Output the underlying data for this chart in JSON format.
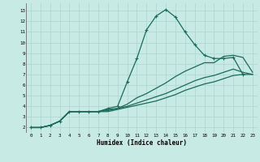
{
  "xlabel": "Humidex (Indice chaleur)",
  "bg_color": "#c8eae4",
  "grid_color": "#b0d8d0",
  "line_color": "#1a6b5a",
  "xlim": [
    -0.5,
    23.5
  ],
  "ylim": [
    1.5,
    13.7
  ],
  "xticks": [
    0,
    1,
    2,
    3,
    4,
    5,
    6,
    7,
    8,
    9,
    10,
    11,
    12,
    13,
    14,
    15,
    16,
    17,
    18,
    19,
    20,
    21,
    22,
    23
  ],
  "yticks": [
    2,
    3,
    4,
    5,
    6,
    7,
    8,
    9,
    10,
    11,
    12,
    13
  ],
  "line1_x": [
    0,
    1,
    2,
    3,
    4,
    5,
    6,
    7,
    8,
    9,
    10,
    11,
    12,
    13,
    14,
    15,
    16,
    17,
    18,
    19,
    20,
    21,
    22
  ],
  "line1_y": [
    2.0,
    2.0,
    2.2,
    2.6,
    3.5,
    3.5,
    3.5,
    3.5,
    3.8,
    4.0,
    6.3,
    8.5,
    11.2,
    12.5,
    13.1,
    12.4,
    11.0,
    9.8,
    8.8,
    8.5,
    8.5,
    8.6,
    7.0
  ],
  "line2_x": [
    0,
    1,
    2,
    3,
    4,
    5,
    6,
    7,
    8,
    9,
    10,
    11,
    12,
    13,
    14,
    15,
    16,
    17,
    18,
    19,
    20,
    21,
    22,
    23
  ],
  "line2_y": [
    2.0,
    2.0,
    2.2,
    2.6,
    3.5,
    3.5,
    3.5,
    3.5,
    3.7,
    3.8,
    4.2,
    4.8,
    5.2,
    5.7,
    6.2,
    6.8,
    7.3,
    7.7,
    8.1,
    8.1,
    8.7,
    8.8,
    8.6,
    7.2
  ],
  "line3_x": [
    0,
    1,
    2,
    3,
    4,
    5,
    6,
    7,
    8,
    9,
    10,
    11,
    12,
    13,
    14,
    15,
    16,
    17,
    18,
    19,
    20,
    21,
    22,
    23
  ],
  "line3_y": [
    2.0,
    2.0,
    2.2,
    2.6,
    3.5,
    3.5,
    3.5,
    3.5,
    3.6,
    3.8,
    4.0,
    4.3,
    4.6,
    4.9,
    5.2,
    5.6,
    6.0,
    6.4,
    6.7,
    6.9,
    7.2,
    7.5,
    7.2,
    7.0
  ],
  "line4_x": [
    0,
    1,
    2,
    3,
    4,
    5,
    6,
    7,
    8,
    9,
    10,
    11,
    12,
    13,
    14,
    15,
    16,
    17,
    18,
    19,
    20,
    21,
    22,
    23
  ],
  "line4_y": [
    2.0,
    2.0,
    2.2,
    2.6,
    3.5,
    3.5,
    3.5,
    3.5,
    3.5,
    3.7,
    3.9,
    4.1,
    4.3,
    4.5,
    4.8,
    5.1,
    5.5,
    5.8,
    6.1,
    6.3,
    6.6,
    6.9,
    7.0,
    7.0
  ]
}
